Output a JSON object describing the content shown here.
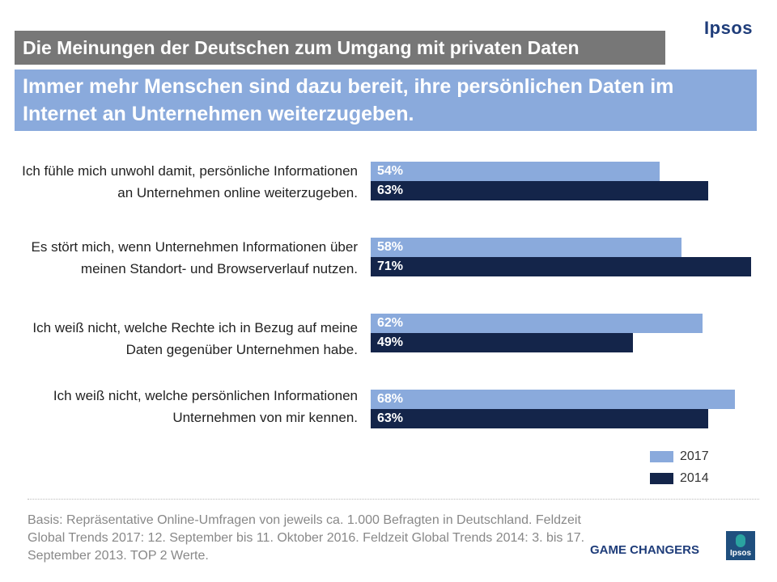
{
  "brand": "Ipsos",
  "title": "Die Meinungen der Deutschen zum Umgang mit privaten Daten",
  "subtitle": "Immer mehr Menschen sind dazu bereit, ihre persönlichen Daten im Internet an Unternehmen weiterzugeben.",
  "colors": {
    "series_2017": "#8aaadc",
    "series_2014": "#14254a",
    "title_bg": "#777777"
  },
  "chart_data": {
    "type": "bar",
    "orientation": "horizontal",
    "categories": [
      "Ich fühle mich unwohl damit, persönliche Informationen an Unternehmen online weiterzugeben.",
      "Es stört mich, wenn Unternehmen Informationen über meinen Standort- und Browserverlauf nutzen.",
      "Ich weiß nicht, welche Rechte ich in Bezug auf meine Daten gegenüber Unternehmen habe.",
      "Ich weiß nicht, welche persönlichen Informationen Unternehmen von mir kennen."
    ],
    "series": [
      {
        "name": "2017",
        "values": [
          54,
          58,
          62,
          68
        ],
        "labels": [
          "54%",
          "58%",
          "62%",
          "68%"
        ]
      },
      {
        "name": "2014",
        "values": [
          63,
          71,
          49,
          63
        ],
        "labels": [
          "63%",
          "71%",
          "49%",
          "63%"
        ]
      }
    ],
    "unit": "%",
    "xlim": [
      0,
      100
    ],
    "legend": [
      "2017",
      "2014"
    ],
    "legend_position": "bottom-right"
  },
  "footer": {
    "basis": "Basis: Repräsentative Online-Umfragen von jeweils ca. 1.000 Befragten in Deutschland. Feldzeit Global Trends 2017: 12. September bis 11. Oktober 2016. Feldzeit Global Trends 2014: 3. bis 17. September 2013. TOP 2 Werte.",
    "tagline": "GAME CHANGERS",
    "logo_text": "Ipsos"
  }
}
